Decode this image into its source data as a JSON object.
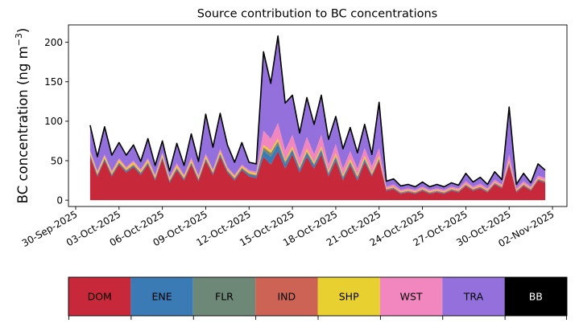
{
  "chart_data": {
    "type": "area",
    "stacked": true,
    "title": "Source contribution to BC concentrations",
    "ylabel": "BC concentration (ng m",
    "ylabel_unit_sup": "−3",
    "ylabel_close": ")",
    "ylim": [
      -8,
      222
    ],
    "yticks": [
      0,
      50,
      100,
      150,
      200
    ],
    "xlim": [
      "2025-09-29T12:00",
      "2025-11-03T00:00"
    ],
    "xtick_dates": [
      "2025-09-30",
      "2025-10-03",
      "2025-10-06",
      "2025-10-09",
      "2025-10-12",
      "2025-10-15",
      "2025-10-18",
      "2025-10-21",
      "2025-10-24",
      "2025-10-27",
      "2025-10-30",
      "2025-11-02"
    ],
    "xtick_labels": [
      "30-Sep-2025",
      "03-Oct-2025",
      "06-Oct-2025",
      "09-Oct-2025",
      "12-Oct-2025",
      "15-Oct-2025",
      "18-Oct-2025",
      "21-Oct-2025",
      "24-Oct-2025",
      "27-Oct-2025",
      "30-Oct-2025",
      "02-Nov-2025"
    ],
    "x": [
      "2025-10-01T00:00",
      "2025-10-01T12:00",
      "2025-10-02T00:00",
      "2025-10-02T12:00",
      "2025-10-03T00:00",
      "2025-10-03T12:00",
      "2025-10-04T00:00",
      "2025-10-04T12:00",
      "2025-10-05T00:00",
      "2025-10-05T12:00",
      "2025-10-06T00:00",
      "2025-10-06T12:00",
      "2025-10-07T00:00",
      "2025-10-07T12:00",
      "2025-10-08T00:00",
      "2025-10-08T12:00",
      "2025-10-09T00:00",
      "2025-10-09T12:00",
      "2025-10-10T00:00",
      "2025-10-10T12:00",
      "2025-10-11T00:00",
      "2025-10-11T12:00",
      "2025-10-12T00:00",
      "2025-10-12T12:00",
      "2025-10-13T00:00",
      "2025-10-13T12:00",
      "2025-10-14T00:00",
      "2025-10-14T12:00",
      "2025-10-15T00:00",
      "2025-10-15T12:00",
      "2025-10-16T00:00",
      "2025-10-16T12:00",
      "2025-10-17T00:00",
      "2025-10-17T12:00",
      "2025-10-18T00:00",
      "2025-10-18T12:00",
      "2025-10-19T00:00",
      "2025-10-19T12:00",
      "2025-10-20T00:00",
      "2025-10-20T12:00",
      "2025-10-21T00:00",
      "2025-10-21T12:00",
      "2025-10-22T00:00",
      "2025-10-22T12:00",
      "2025-10-23T00:00",
      "2025-10-23T12:00",
      "2025-10-24T00:00",
      "2025-10-24T12:00",
      "2025-10-25T00:00",
      "2025-10-25T12:00",
      "2025-10-26T00:00",
      "2025-10-26T12:00",
      "2025-10-27T00:00",
      "2025-10-27T12:00",
      "2025-10-28T00:00",
      "2025-10-28T12:00",
      "2025-10-29T00:00",
      "2025-10-29T12:00",
      "2025-10-30T00:00",
      "2025-10-30T12:00",
      "2025-10-31T00:00",
      "2025-10-31T12:00",
      "2025-11-01T00:00",
      "2025-11-01T12:00"
    ],
    "series": [
      {
        "name": "DOM",
        "color": "#c8293a",
        "values": [
          55,
          30,
          50,
          30,
          45,
          35,
          42,
          32,
          45,
          25,
          52,
          22,
          38,
          25,
          45,
          24,
          50,
          32,
          55,
          35,
          25,
          38,
          30,
          28,
          55,
          45,
          62,
          40,
          58,
          35,
          55,
          40,
          58,
          30,
          50,
          25,
          44,
          25,
          48,
          30,
          50,
          12,
          14,
          8,
          10,
          8,
          12,
          8,
          10,
          8,
          12,
          10,
          18,
          12,
          15,
          10,
          20,
          15,
          45,
          10,
          18,
          12,
          25,
          22
        ]
      },
      {
        "name": "ENE",
        "color": "#3a7ab5",
        "values": [
          2,
          2,
          2,
          2,
          2,
          2,
          2,
          2,
          2,
          2,
          2,
          2,
          2,
          2,
          2,
          2,
          2,
          2,
          3,
          2,
          2,
          2,
          3,
          3,
          8,
          10,
          9,
          6,
          5,
          4,
          5,
          4,
          5,
          3,
          4,
          3,
          3,
          3,
          3,
          2,
          2,
          1,
          1,
          1,
          1,
          1,
          1,
          1,
          1,
          1,
          1,
          1,
          1,
          1,
          1,
          1,
          1,
          1,
          2,
          1,
          1,
          1,
          1,
          1
        ]
      },
      {
        "name": "FLR",
        "color": "#6e8878",
        "values": [
          0,
          0,
          0,
          0,
          0,
          0,
          0,
          0,
          0,
          0,
          0,
          0,
          0,
          0,
          0,
          0,
          0,
          0,
          0,
          0,
          0,
          0,
          0,
          0,
          3,
          4,
          3,
          2,
          1,
          1,
          1,
          1,
          1,
          1,
          1,
          1,
          1,
          1,
          1,
          0,
          0,
          0,
          0,
          0,
          0,
          0,
          0,
          0,
          0,
          0,
          0,
          0,
          0,
          0,
          0,
          0,
          0,
          0,
          0,
          0,
          0,
          0,
          0,
          0
        ]
      },
      {
        "name": "IND",
        "color": "#cd6355",
        "values": [
          1,
          1,
          1,
          1,
          1,
          1,
          1,
          1,
          1,
          1,
          1,
          1,
          1,
          1,
          1,
          1,
          1,
          1,
          1,
          1,
          1,
          1,
          1,
          1,
          1,
          1,
          1,
          1,
          1,
          1,
          1,
          1,
          1,
          1,
          1,
          1,
          1,
          1,
          1,
          1,
          1,
          1,
          1,
          1,
          1,
          1,
          1,
          1,
          1,
          1,
          1,
          1,
          1,
          1,
          1,
          1,
          1,
          1,
          1,
          1,
          1,
          1,
          1,
          1
        ]
      },
      {
        "name": "SHP",
        "color": "#e8d030",
        "values": [
          3,
          2,
          3,
          2,
          3,
          2,
          3,
          2,
          3,
          2,
          3,
          2,
          3,
          2,
          3,
          2,
          3,
          2,
          3,
          2,
          2,
          2,
          2,
          2,
          3,
          3,
          3,
          2,
          3,
          2,
          3,
          2,
          3,
          2,
          3,
          2,
          3,
          2,
          3,
          2,
          3,
          1,
          1,
          1,
          1,
          1,
          1,
          1,
          1,
          1,
          1,
          1,
          1,
          1,
          1,
          1,
          1,
          1,
          2,
          1,
          1,
          1,
          1,
          1
        ]
      },
      {
        "name": "WST",
        "color": "#f287c0",
        "values": [
          2,
          2,
          2,
          2,
          2,
          2,
          2,
          2,
          2,
          2,
          2,
          2,
          3,
          2,
          3,
          2,
          3,
          2,
          3,
          2,
          2,
          2,
          2,
          2,
          18,
          15,
          20,
          12,
          15,
          10,
          15,
          10,
          15,
          8,
          12,
          8,
          10,
          8,
          10,
          8,
          10,
          2,
          3,
          2,
          2,
          2,
          2,
          2,
          2,
          2,
          2,
          2,
          3,
          2,
          3,
          2,
          3,
          2,
          8,
          2,
          3,
          2,
          3,
          3
        ]
      },
      {
        "name": "TRA",
        "color": "#9370db",
        "values": [
          32,
          18,
          35,
          20,
          20,
          15,
          20,
          10,
          25,
          12,
          15,
          8,
          25,
          12,
          30,
          18,
          50,
          28,
          45,
          28,
          16,
          28,
          10,
          10,
          100,
          70,
          110,
          60,
          50,
          32,
          50,
          38,
          50,
          32,
          35,
          25,
          30,
          20,
          30,
          15,
          58,
          7,
          7,
          5,
          5,
          4,
          6,
          4,
          5,
          4,
          5,
          4,
          10,
          6,
          8,
          5,
          10,
          6,
          60,
          5,
          10,
          5,
          15,
          10
        ]
      },
      {
        "name": "BB",
        "color": "#000000",
        "values": [
          0,
          0,
          0,
          0,
          0,
          0,
          0,
          0,
          0,
          0,
          0,
          0,
          0,
          0,
          0,
          0,
          0,
          0,
          0,
          0,
          0,
          0,
          0,
          0,
          0,
          0,
          0,
          0,
          0,
          0,
          0,
          0,
          0,
          0,
          0,
          0,
          0,
          0,
          0,
          0,
          0,
          0,
          0,
          0,
          0,
          0,
          0,
          0,
          0,
          0,
          0,
          0,
          0,
          0,
          0,
          0,
          0,
          0,
          0,
          0,
          0,
          0,
          0,
          0
        ]
      }
    ],
    "total_line_color": "#000000",
    "colorbar_labels": [
      "DOM",
      "ENE",
      "FLR",
      "IND",
      "SHP",
      "WST",
      "TRA",
      "BB"
    ],
    "colorbar_colors": [
      "#c8293a",
      "#3a7ab5",
      "#6e8878",
      "#cd6355",
      "#e8d030",
      "#f287c0",
      "#9370db",
      "#000000"
    ],
    "colorbar_text_colors": [
      "#000000",
      "#000000",
      "#000000",
      "#000000",
      "#000000",
      "#000000",
      "#000000",
      "#ffffff"
    ]
  }
}
